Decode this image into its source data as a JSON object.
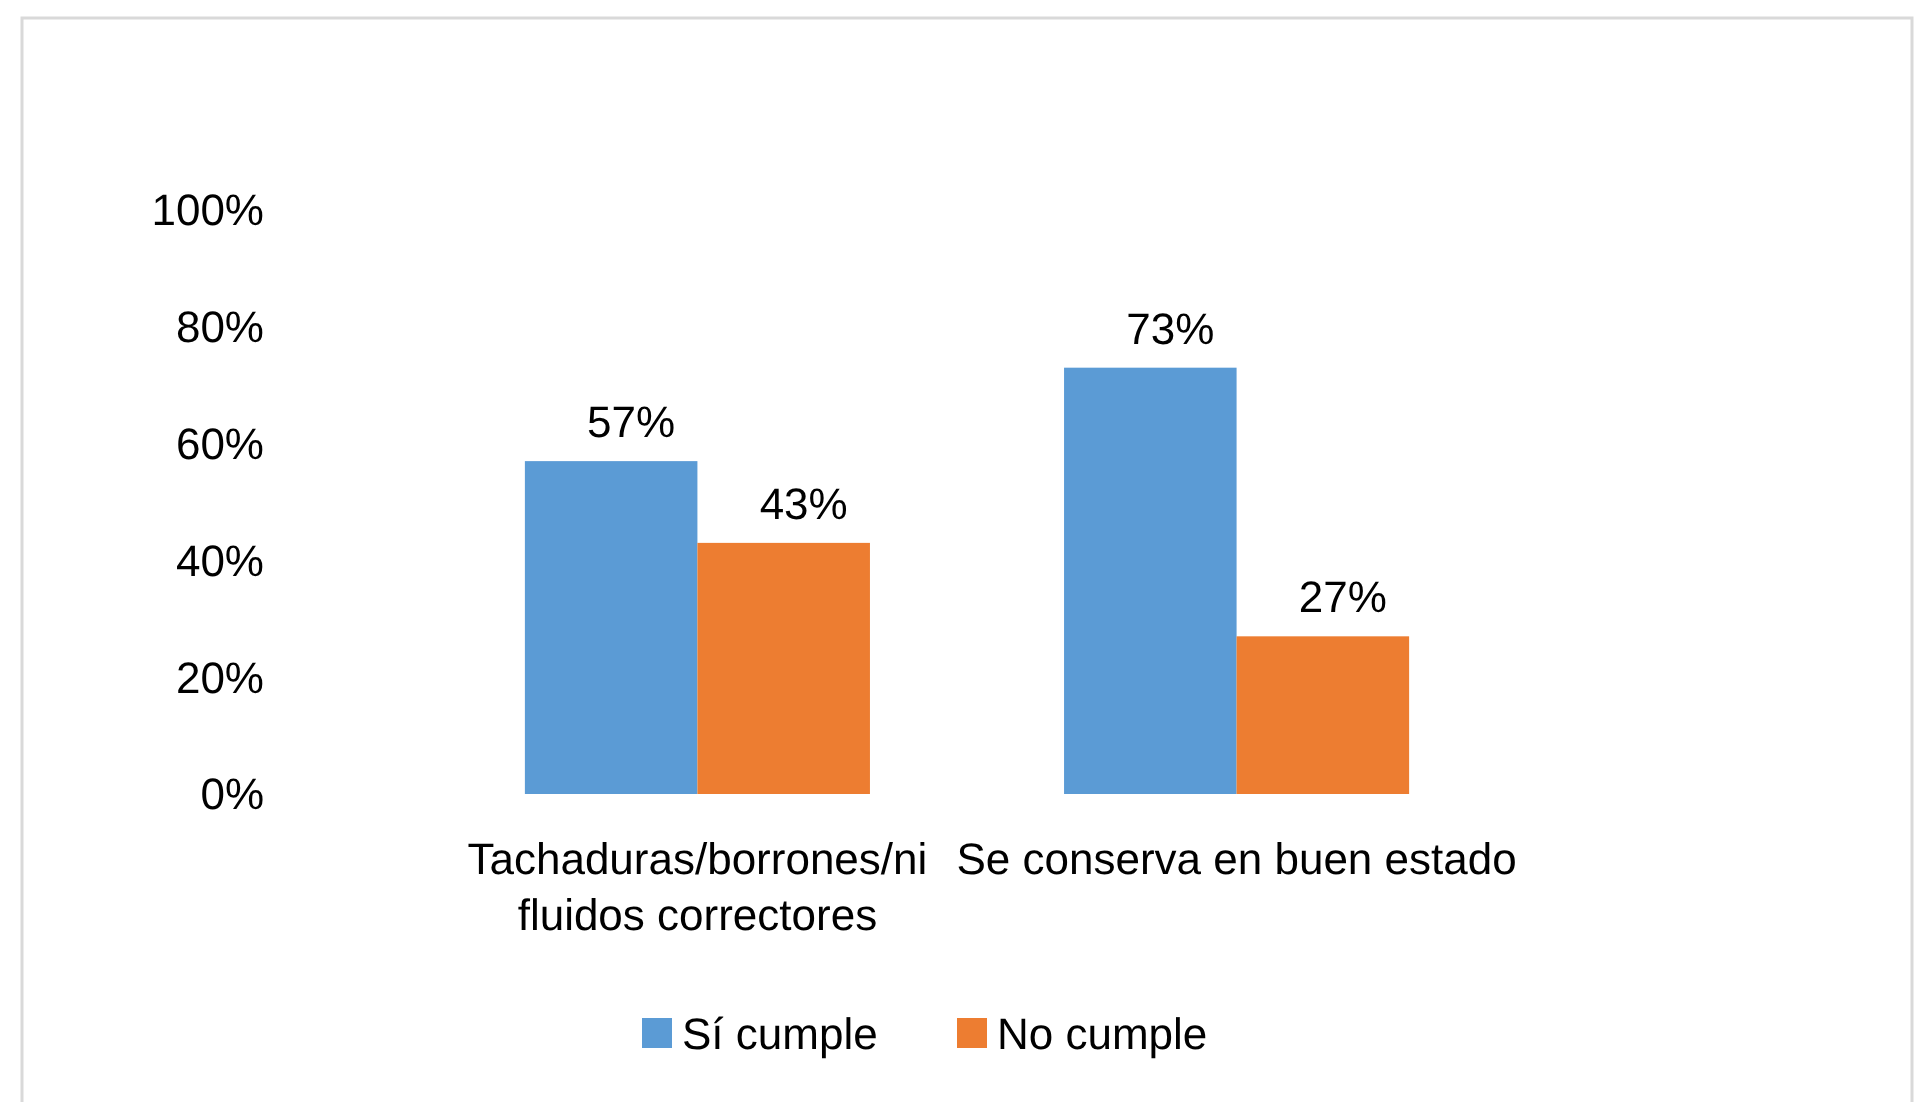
{
  "chart_data": {
    "type": "bar",
    "categories": [
      "Tachaduras/borrones/ni fluidos correctores",
      "Se conserva en buen estado"
    ],
    "series": [
      {
        "name": "Sí cumple",
        "color": "#5b9bd5",
        "values": [
          57,
          73
        ],
        "value_labels": [
          "57%",
          "73%"
        ]
      },
      {
        "name": "No cumple",
        "color": "#ed7d31",
        "values": [
          43,
          27
        ],
        "value_labels": [
          "43%",
          "27%"
        ]
      }
    ],
    "ylim": [
      0,
      100
    ],
    "yticks": [
      {
        "value": 0,
        "label": "0%"
      },
      {
        "value": 20,
        "label": "20%"
      },
      {
        "value": 40,
        "label": "40%"
      },
      {
        "value": 60,
        "label": "60%"
      },
      {
        "value": 80,
        "label": "80%"
      },
      {
        "value": 100,
        "label": "100%"
      }
    ],
    "legend": "bottom",
    "grid": false
  }
}
